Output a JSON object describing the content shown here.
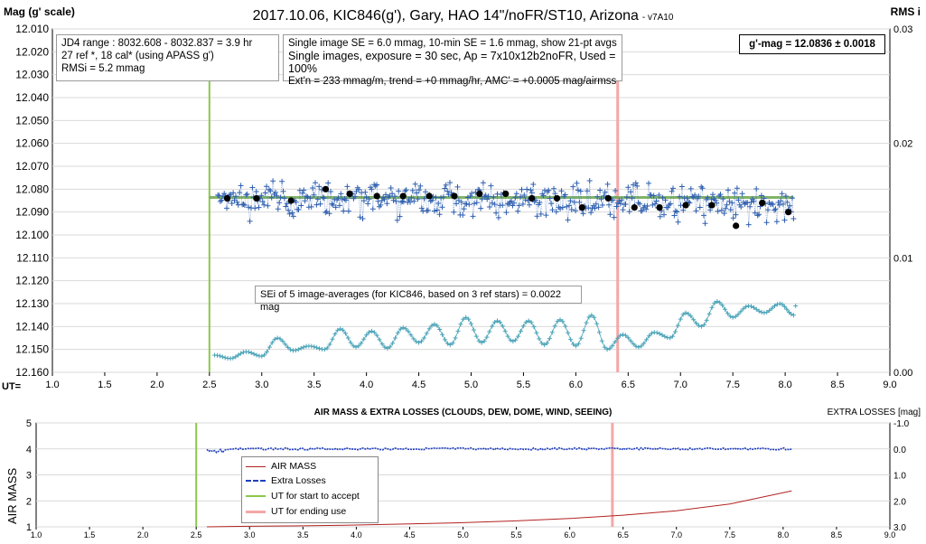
{
  "header": {
    "title": "2017.10.06,  KIC846(g'),  Gary,  HAO  14\"/noFR/ST10,  Arizona",
    "version": "- v7A10",
    "y_left_title": "Mag (g' scale)",
    "y_right_title": "RMS i",
    "ut_label": "UT="
  },
  "boxes": {
    "range": [
      "JD4 range : 8032.608 - 8032.837 =  3.9  hr",
      "27 ref *, 18 cal* (using APASS g')",
      "RMSi = 5.2 mmag"
    ],
    "info": [
      "Single image SE = 6.0 mmag, 10-min SE = 1.6 mmag, show 21-pt avgs",
      "Single images, exposure = 30 sec, Ap = 7x10x12b2noFR, Used = 100%",
      "Ext'n = 233 mmag/m, trend = +0 mmag/hr, AMC' = +0.0005 mag/airmss"
    ],
    "result": "g'-mag = 12.0836 ± 0.0018",
    "sei": "SEi of 5 image-averages (for KIC846, based on 3 ref stars) = 0.0022 mag"
  },
  "lower": {
    "title": "AIR MASS & EXTRA LOSSES (CLOUDS, DEW, DOME, WIND, SEEING)",
    "right_title": "EXTRA LOSSES [mag]",
    "ylabel": "AIR MASS",
    "legend": [
      "AIR MASS",
      "Extra Losses",
      "UT for start to accept",
      "UT for ending use"
    ]
  },
  "colors": {
    "points": "#2e5fb0",
    "averages": "#000000",
    "fit": "#6aa84f",
    "rms": "#4aa3b8",
    "start": "#8cc84b",
    "end": "#f4a7a7",
    "airmass": "#b22222",
    "extra": "#1f3fbf"
  },
  "chart_data": [
    {
      "type": "scatter",
      "title": "2017.10.06,  KIC846(g'),  Gary,  HAO  14\"/noFR/ST10,  Arizona",
      "xlabel": "UT=",
      "ylabel": "Mag (g' scale)",
      "y2label": "RMS i",
      "xlim": [
        1.0,
        9.0
      ],
      "ylim": [
        12.16,
        12.01
      ],
      "y2lim": [
        0.0,
        0.03
      ],
      "xticks": [
        "1.0",
        "1.5",
        "2.0",
        "2.5",
        "3.0",
        "3.5",
        "4.0",
        "4.5",
        "5.0",
        "5.5",
        "6.0",
        "6.5",
        "7.0",
        "7.5",
        "8.0",
        "8.5",
        "9.0"
      ],
      "yticks": [
        "12.010",
        "12.020",
        "12.030",
        "12.040",
        "12.050",
        "12.060",
        "12.070",
        "12.080",
        "12.090",
        "12.100",
        "12.110",
        "12.120",
        "12.130",
        "12.140",
        "12.150",
        "12.160"
      ],
      "y2ticks": [
        "0.03",
        "0.02",
        "0.01",
        "0.00"
      ],
      "start_ut": 2.5,
      "end_ut": 6.4,
      "fit_mag": 12.0836,
      "averages": {
        "x": [
          2.67,
          2.95,
          3.28,
          3.61,
          3.84,
          4.1,
          4.35,
          4.6,
          4.84,
          5.08,
          5.33,
          5.58,
          5.82,
          6.06,
          6.31,
          6.56,
          6.8,
          7.05,
          7.3,
          7.53,
          7.78,
          8.03
        ],
        "y": [
          12.084,
          12.084,
          12.085,
          12.08,
          12.082,
          12.083,
          12.083,
          12.083,
          12.083,
          12.082,
          12.082,
          12.084,
          12.084,
          12.088,
          12.084,
          12.088,
          12.088,
          12.087,
          12.087,
          12.096,
          12.086,
          12.09
        ]
      },
      "single_images": {
        "x_range": [
          2.58,
          8.08
        ],
        "mean": 12.085,
        "scatter_mag": 0.006
      },
      "rms_curve": {
        "x": [
          2.55,
          2.7,
          2.85,
          3.0,
          3.15,
          3.3,
          3.45,
          3.6,
          3.75,
          3.9,
          4.05,
          4.2,
          4.35,
          4.5,
          4.65,
          4.8,
          4.95,
          5.1,
          5.25,
          5.4,
          5.55,
          5.7,
          5.85,
          6.0,
          6.15,
          6.3,
          6.45,
          6.6,
          6.75,
          6.9,
          7.05,
          7.2,
          7.35,
          7.5,
          7.65,
          7.8,
          7.95,
          8.08
        ],
        "y": [
          0.0015,
          0.0012,
          0.0018,
          0.0014,
          0.003,
          0.0019,
          0.0023,
          0.002,
          0.0038,
          0.0022,
          0.0036,
          0.0021,
          0.0039,
          0.0026,
          0.0042,
          0.0024,
          0.0048,
          0.0026,
          0.0045,
          0.0027,
          0.0045,
          0.0024,
          0.0046,
          0.0023,
          0.005,
          0.002,
          0.0033,
          0.0022,
          0.0035,
          0.003,
          0.0052,
          0.004,
          0.0062,
          0.0048,
          0.0058,
          0.0052,
          0.006,
          0.005
        ]
      }
    },
    {
      "type": "line",
      "title": "AIR MASS & EXTRA LOSSES (CLOUDS, DEW, DOME, WIND, SEEING)",
      "xlabel": "",
      "ylabel": "AIR MASS",
      "y2label": "EXTRA LOSSES [mag]",
      "xlim": [
        1.0,
        9.0
      ],
      "ylim": [
        1,
        5
      ],
      "y2lim": [
        3.0,
        -1.0
      ],
      "xticks": [
        "1.0",
        "1.5",
        "2.0",
        "2.5",
        "3.0",
        "3.5",
        "4.0",
        "4.5",
        "5.0",
        "5.5",
        "6.0",
        "6.5",
        "7.0",
        "7.5",
        "8.0",
        "8.5",
        "9.0"
      ],
      "yticks": [
        "5",
        "4",
        "3",
        "2",
        "1"
      ],
      "y2ticks": [
        "-1.0",
        "0.0",
        "1.0",
        "2.0",
        "3.0"
      ],
      "start_ut": 2.5,
      "end_ut": 6.4,
      "series": [
        {
          "name": "AIR MASS",
          "x": [
            2.6,
            3.0,
            3.5,
            4.0,
            4.5,
            5.0,
            5.5,
            6.0,
            6.5,
            7.0,
            7.5,
            8.08
          ],
          "y": [
            1.0,
            1.02,
            1.04,
            1.07,
            1.11,
            1.16,
            1.23,
            1.32,
            1.45,
            1.62,
            1.88,
            2.38
          ]
        },
        {
          "name": "Extra Losses",
          "x": [
            2.6,
            8.08
          ],
          "y": [
            0.0,
            0.0
          ]
        }
      ],
      "legend": [
        "AIR MASS",
        "Extra Losses",
        "UT for start to accept",
        "UT for ending use"
      ]
    }
  ]
}
